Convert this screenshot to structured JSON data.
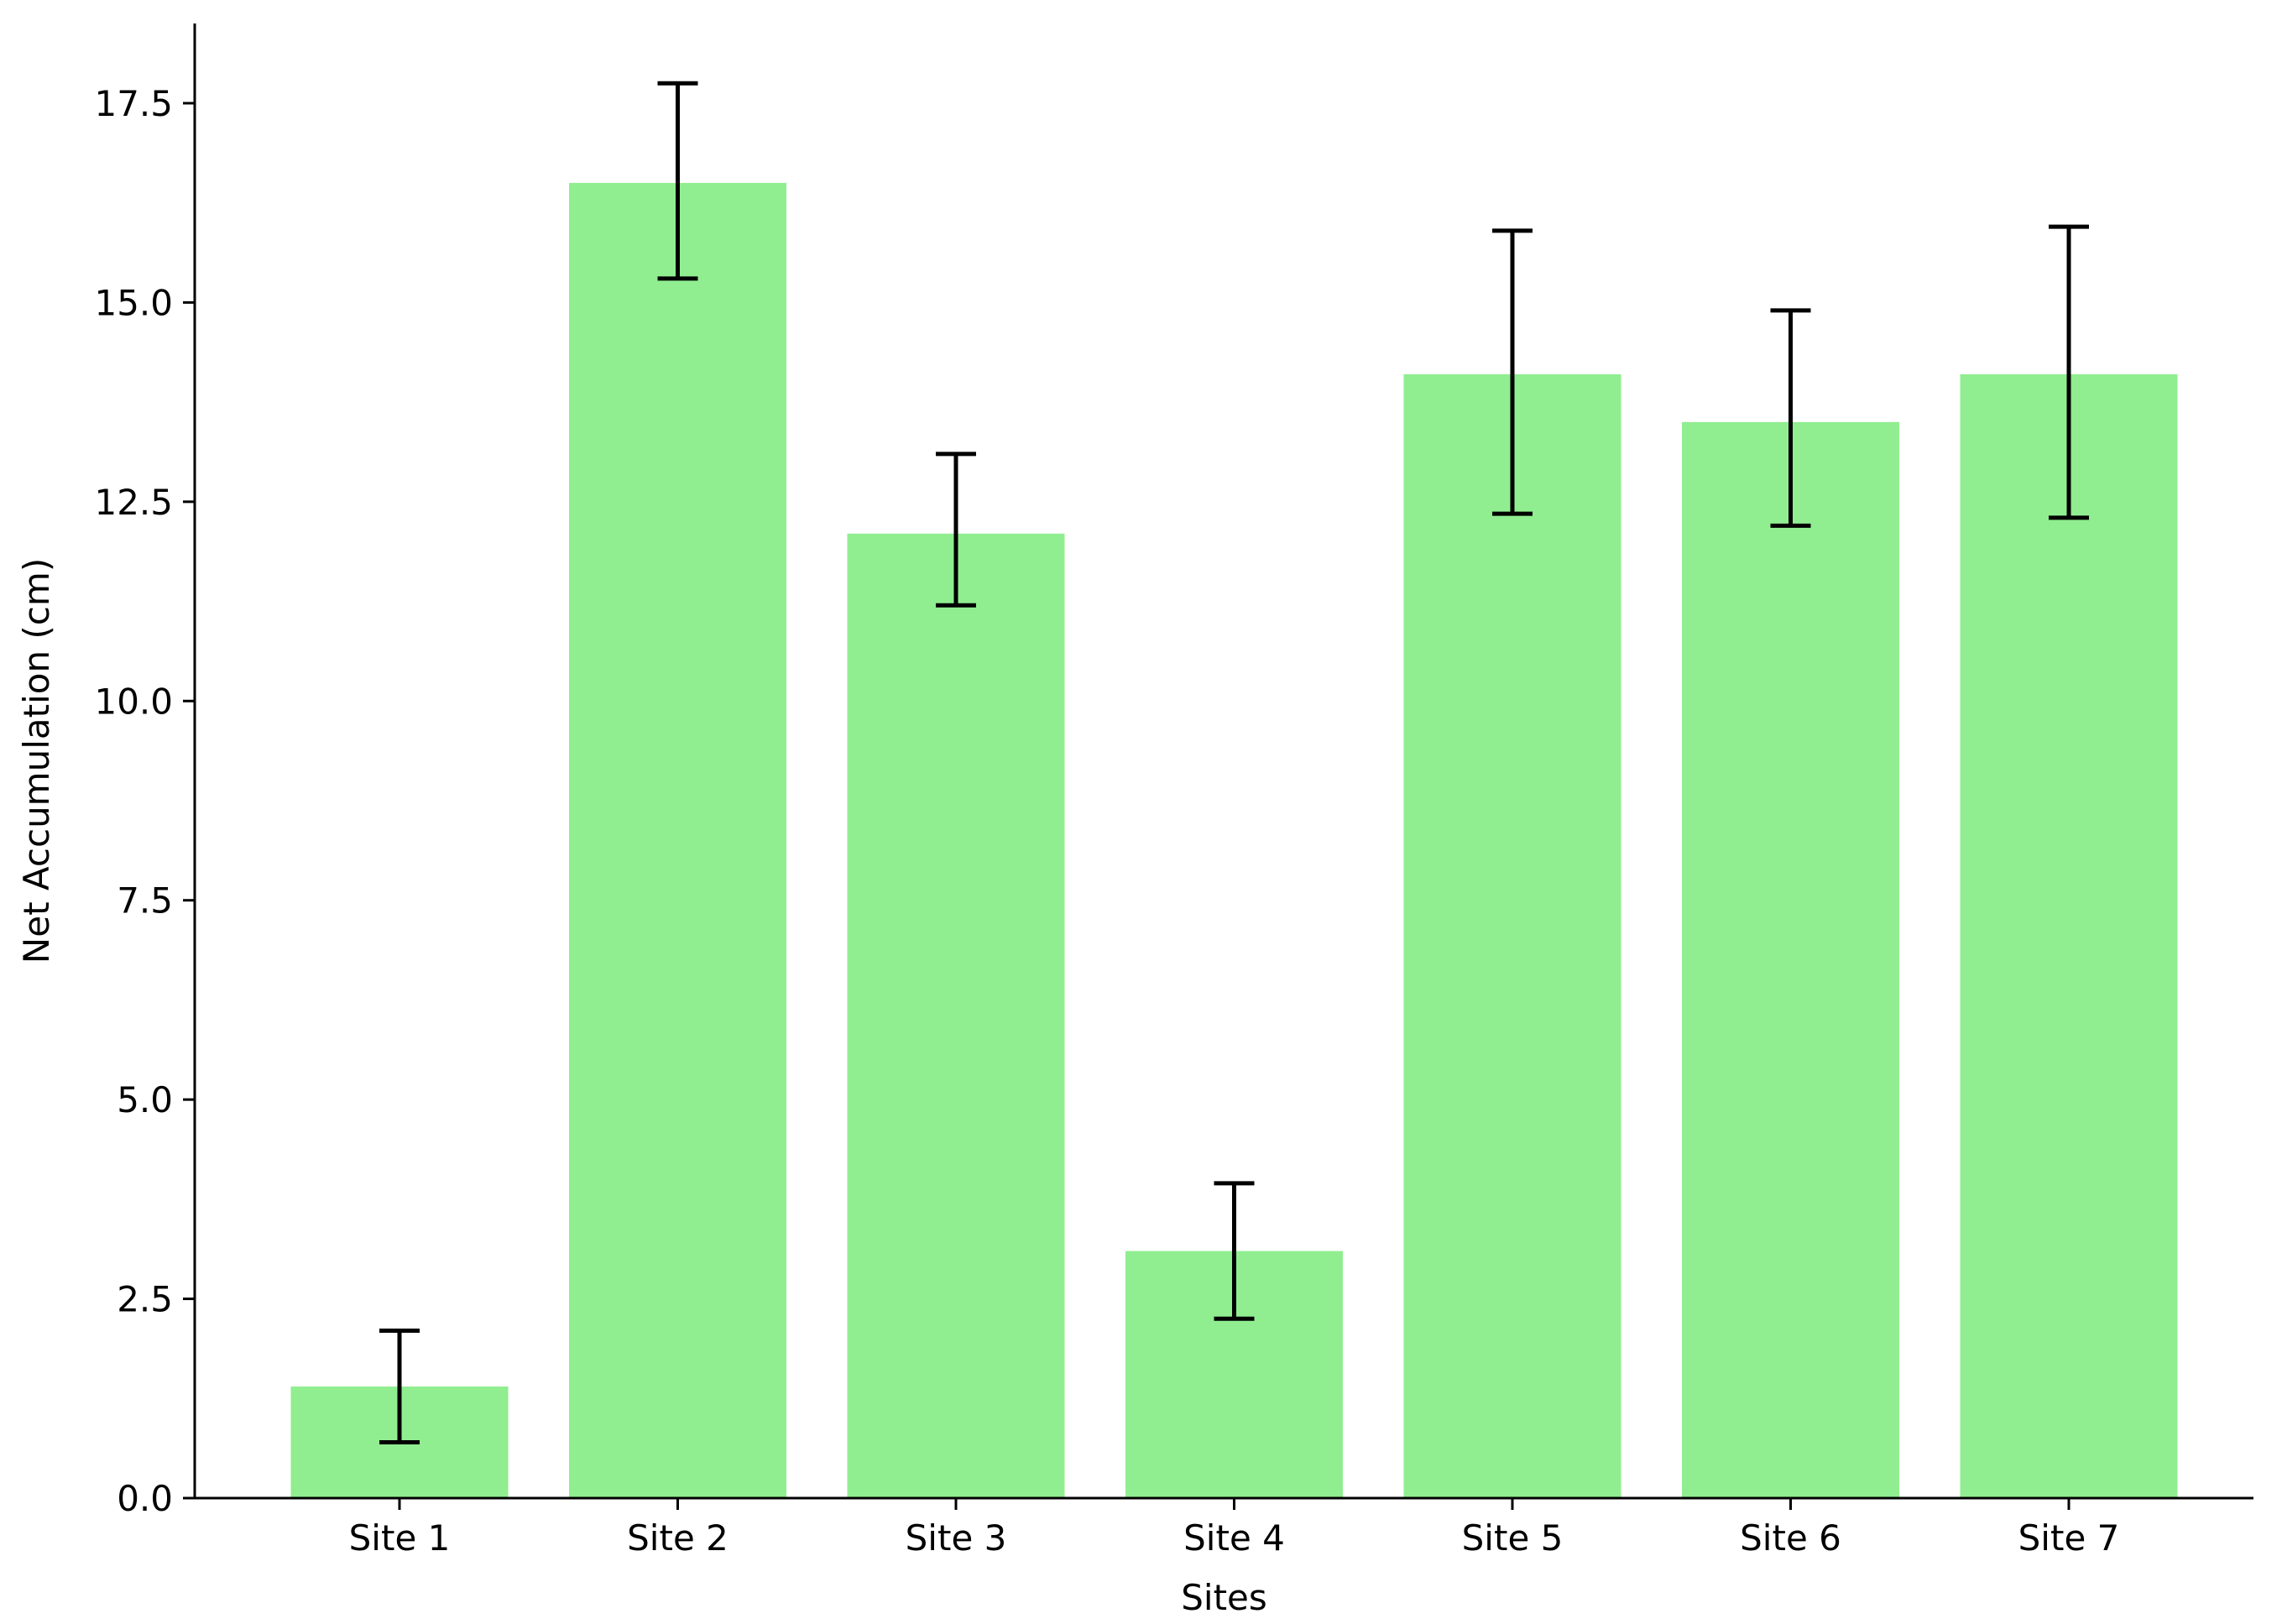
{
  "chart_data": {
    "type": "bar",
    "title": "",
    "xlabel": "Sites",
    "ylabel": "Net Accumulation (cm)",
    "categories": [
      "Site 1",
      "Site 2",
      "Site 3",
      "Site 4",
      "Site 5",
      "Site 6",
      "Site 7"
    ],
    "values": [
      1.4,
      16.5,
      12.1,
      3.1,
      14.1,
      13.5,
      14.1
    ],
    "error_low": [
      0.7,
      15.3,
      11.2,
      2.25,
      12.35,
      12.2,
      12.3
    ],
    "error_high": [
      2.1,
      17.75,
      13.1,
      3.95,
      15.9,
      14.9,
      15.95
    ],
    "ylim": [
      0,
      18.5
    ],
    "yticks": [
      0.0,
      2.5,
      5.0,
      7.5,
      10.0,
      12.5,
      15.0,
      17.5
    ],
    "ytick_labels": [
      "0.0",
      "2.5",
      "5.0",
      "7.5",
      "10.0",
      "12.5",
      "15.0",
      "17.5"
    ],
    "grid": false,
    "legend": "none",
    "bar_color": "#90ee90",
    "error_color": "#000000"
  }
}
